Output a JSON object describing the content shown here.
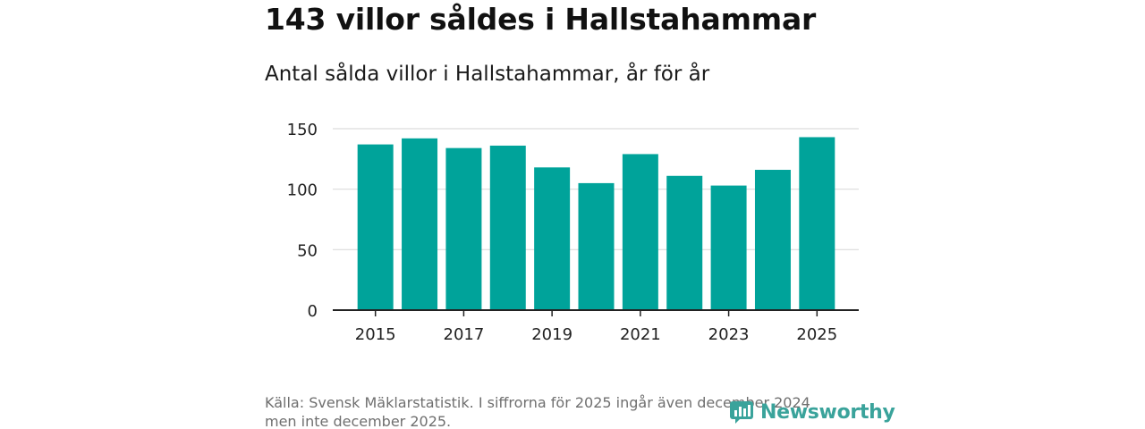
{
  "header": {
    "title": "143 villor såldes i Hallstahammar",
    "subtitle": "Antal sålda villor i Hallstahammar, år för år"
  },
  "footer": {
    "source_line1": "Källa: Svensk Mäklarstatistik. I siffrorna för 2025 ingår även december 2024",
    "source_line2": "men inte december 2025.",
    "brand": "Newsworthy"
  },
  "colors": {
    "bar": "#00a39a",
    "grid": "#dcdcdc",
    "axis": "#222222",
    "brand": "#3aa39b"
  },
  "chart_data": {
    "type": "bar",
    "title": "Antal sålda villor i Hallstahammar, år för år",
    "xlabel": "",
    "ylabel": "",
    "categories": [
      "2015",
      "2016",
      "2017",
      "2018",
      "2019",
      "2020",
      "2021",
      "2022",
      "2023",
      "2024",
      "2025"
    ],
    "values": [
      137,
      142,
      134,
      136,
      118,
      105,
      129,
      111,
      103,
      116,
      143
    ],
    "ylim": [
      0,
      150
    ],
    "yticks": [
      0,
      50,
      100,
      150
    ],
    "xtick_labels": [
      "2015",
      "2017",
      "2019",
      "2021",
      "2023",
      "2025"
    ],
    "grid": true
  }
}
